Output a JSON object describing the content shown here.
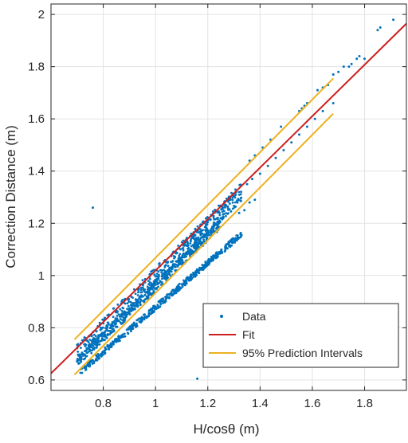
{
  "chart_data": {
    "type": "scatter",
    "xlabel": "H/cosθ (m)",
    "ylabel": "Correction Distance (m)",
    "xlim": [
      0.6,
      1.96
    ],
    "ylim": [
      0.56,
      2.04
    ],
    "xticks": [
      0.8,
      1.0,
      1.2,
      1.4,
      1.6,
      1.8
    ],
    "xtick_labels": [
      "0.8",
      "1",
      "1.2",
      "1.4",
      "1.6",
      "1.8"
    ],
    "yticks": [
      0.6,
      0.8,
      1.0,
      1.2,
      1.4,
      1.6,
      1.8,
      2.0
    ],
    "ytick_labels": [
      "0.6",
      "0.8",
      "1",
      "1.2",
      "1.4",
      "1.6",
      "1.8",
      "2"
    ],
    "grid": true,
    "legend": {
      "position": "bottom-right",
      "entries": [
        "Data",
        "Fit",
        "95% Prediction Intervals"
      ]
    },
    "colors": {
      "data": "#0072BD",
      "fit": "#CC1F1F",
      "interval": "#EDB120"
    },
    "series": [
      {
        "name": "Data",
        "kind": "points",
        "description_bands": [
          {
            "x_from": 0.7,
            "x_to": 1.33,
            "y_at_from": 0.705,
            "y_at_to": 1.32,
            "spread": 0.035
          },
          {
            "x_from": 0.7,
            "x_to": 1.25,
            "y_at_from": 0.67,
            "y_at_to": 1.2,
            "spread": 0.02
          },
          {
            "x_from": 0.71,
            "x_to": 1.33,
            "y_at_from": 0.63,
            "y_at_to": 1.16,
            "spread": 0.012
          }
        ],
        "points": [
          [
            0.76,
            1.26
          ],
          [
            1.16,
            0.605
          ],
          [
            1.48,
            1.57
          ],
          [
            1.55,
            1.63
          ],
          [
            1.56,
            1.64
          ],
          [
            1.57,
            1.65
          ],
          [
            1.58,
            1.66
          ],
          [
            1.62,
            1.71
          ],
          [
            1.64,
            1.72
          ],
          [
            1.66,
            1.73
          ],
          [
            1.68,
            1.77
          ],
          [
            1.7,
            1.78
          ],
          [
            1.72,
            1.8
          ],
          [
            1.74,
            1.8
          ],
          [
            1.75,
            1.81
          ],
          [
            1.77,
            1.83
          ],
          [
            1.78,
            1.84
          ],
          [
            1.8,
            1.83
          ],
          [
            1.85,
            1.94
          ],
          [
            1.86,
            1.95
          ],
          [
            1.91,
            1.98
          ],
          [
            1.36,
            1.44
          ],
          [
            1.38,
            1.46
          ],
          [
            1.41,
            1.49
          ],
          [
            1.44,
            1.52
          ],
          [
            1.35,
            1.35
          ],
          [
            1.37,
            1.37
          ],
          [
            1.4,
            1.39
          ],
          [
            1.43,
            1.42
          ],
          [
            1.46,
            1.45
          ],
          [
            1.49,
            1.48
          ],
          [
            1.52,
            1.51
          ],
          [
            1.55,
            1.54
          ],
          [
            1.58,
            1.57
          ],
          [
            1.61,
            1.6
          ],
          [
            1.64,
            1.63
          ],
          [
            1.68,
            1.66
          ],
          [
            1.32,
            1.24
          ],
          [
            1.34,
            1.25
          ],
          [
            1.36,
            1.28
          ],
          [
            1.38,
            1.29
          ]
        ]
      },
      {
        "name": "Fit",
        "kind": "line",
        "x": [
          0.6,
          1.96
        ],
        "y": [
          0.625,
          1.965
        ]
      },
      {
        "name": "95% Prediction Intervals",
        "kind": "line",
        "x": [
          0.69,
          1.68
        ],
        "y": [
          0.755,
          1.755
        ]
      },
      {
        "name": "95% Prediction Intervals",
        "kind": "line",
        "x": [
          0.69,
          1.68
        ],
        "y": [
          0.62,
          1.62
        ]
      }
    ]
  }
}
